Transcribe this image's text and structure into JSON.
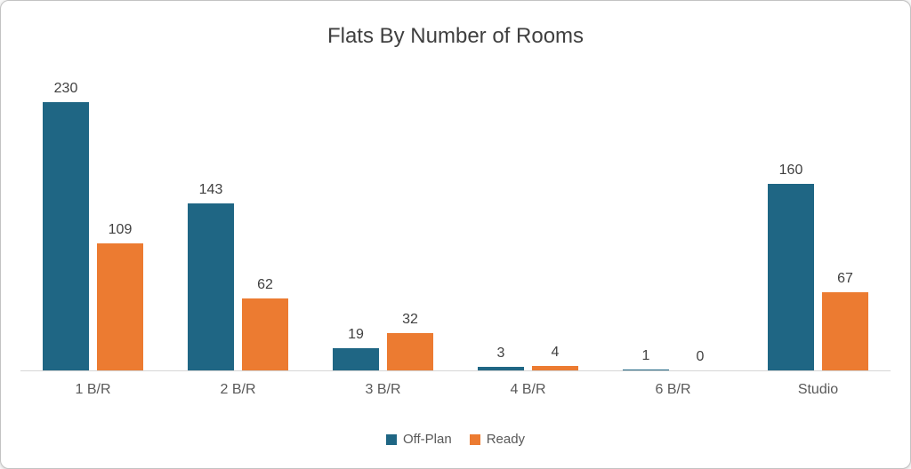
{
  "chart_data": {
    "type": "bar",
    "title": "Flats By Number of Rooms",
    "categories": [
      "1 B/R",
      "2 B/R",
      "3 B/R",
      "4 B/R",
      "6 B/R",
      "Studio"
    ],
    "series": [
      {
        "name": "Off-Plan",
        "color": "#1f6684",
        "values": [
          230,
          143,
          19,
          3,
          1,
          160
        ]
      },
      {
        "name": "Ready",
        "color": "#ec7b31",
        "values": [
          109,
          62,
          32,
          4,
          0,
          67
        ]
      }
    ],
    "xlabel": "",
    "ylabel": "",
    "ylim": [
      0,
      250
    ],
    "grid": false,
    "legend_position": "bottom",
    "data_labels": true
  },
  "colors": {
    "title_text": "#3f3f3f",
    "value_label_text": "#404040",
    "category_text": "#595959",
    "axis_line": "#d6d6d6"
  }
}
